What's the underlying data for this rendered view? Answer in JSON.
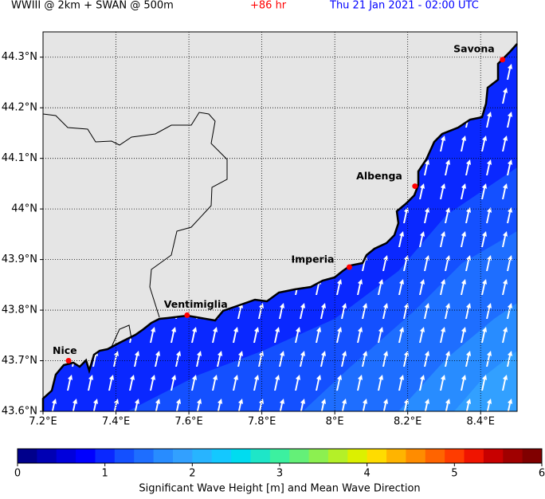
{
  "header": {
    "model": "WWIII @ 2km + SWAN @ 500m",
    "lead": "+86 hr",
    "valid": "Thu 21 Jan 2021 - 02:00 UTC"
  },
  "map": {
    "xlim": [
      7.2,
      8.5
    ],
    "ylim": [
      43.6,
      44.35
    ],
    "xticks": [
      {
        "value": 7.2,
        "label": "7.2°E"
      },
      {
        "value": 7.4,
        "label": "7.4°E"
      },
      {
        "value": 7.6,
        "label": "7.6°E"
      },
      {
        "value": 7.8,
        "label": "7.8°E"
      },
      {
        "value": 8,
        "label": "8°E"
      },
      {
        "value": 8.2,
        "label": "8.2°E"
      },
      {
        "value": 8.4,
        "label": "8.4°E"
      }
    ],
    "yticks": [
      {
        "value": 43.6,
        "label": "43.6°N"
      },
      {
        "value": 43.7,
        "label": "43.7°N"
      },
      {
        "value": 43.8,
        "label": "43.8°N"
      },
      {
        "value": 43.9,
        "label": "43.9°N"
      },
      {
        "value": 44,
        "label": "44°N"
      },
      {
        "value": 44.1,
        "label": "44.1°N"
      },
      {
        "value": 44.2,
        "label": "44.2°N"
      },
      {
        "value": 44.3,
        "label": "44.3°N"
      }
    ],
    "grid": true,
    "cities": [
      {
        "name": "Savona",
        "lon": 8.46,
        "lat": 44.295
      },
      {
        "name": "Albenga",
        "lon": 8.22,
        "lat": 44.045
      },
      {
        "name": "Imperia",
        "lon": 8.04,
        "lat": 43.885
      },
      {
        "name": "Ventimiglia",
        "lon": 7.595,
        "lat": 43.79
      },
      {
        "name": "Nice",
        "lon": 7.27,
        "lat": 43.7
      }
    ]
  },
  "colorbar": {
    "lim": [
      0,
      6
    ],
    "ticks": [
      0,
      1,
      2,
      3,
      4,
      5,
      6
    ],
    "label": "Significant Wave Height [m] and Mean Wave Direction",
    "colors": [
      "#00008c",
      "#0000b4",
      "#0000dc",
      "#0000ff",
      "#0a28ff",
      "#1450ff",
      "#1e6eff",
      "#288cff",
      "#32a0ff",
      "#28b4ff",
      "#14c8ff",
      "#00dcf0",
      "#1ee6c8",
      "#3cf0a0",
      "#64f078",
      "#8cf050",
      "#b4f028",
      "#dcf000",
      "#ffdc00",
      "#ffb400",
      "#ff8c00",
      "#ff6400",
      "#ff3c00",
      "#f01400",
      "#c80000",
      "#a00000",
      "#800000"
    ]
  }
}
